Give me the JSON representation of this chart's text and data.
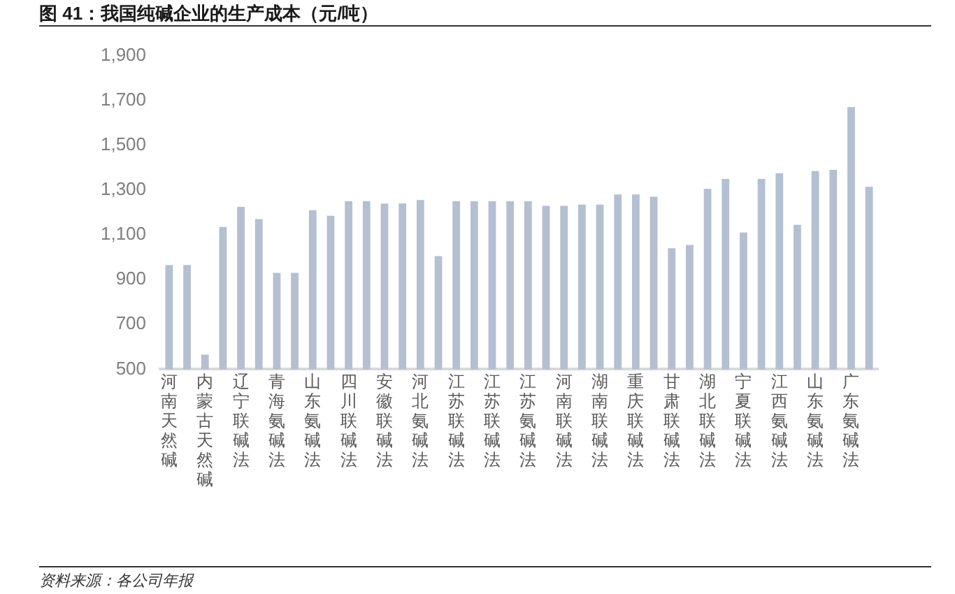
{
  "chart_data": {
    "type": "bar",
    "title": "图 41：我国纯碱企业的生产成本（元/吨）",
    "categories": [
      "河南天然碱",
      null,
      "内蒙古天然碱",
      null,
      "辽宁联碱法",
      null,
      "青海氨碱法",
      null,
      "山东氨碱法",
      null,
      "四川联碱法",
      null,
      "安徽联碱法",
      null,
      "河北氨碱法",
      null,
      "江苏联碱法",
      null,
      "江苏联碱法",
      null,
      "江苏氨碱法",
      null,
      "河南联碱法",
      null,
      "湖南联碱法",
      null,
      "重庆联碱法",
      null,
      "甘肃联碱法",
      null,
      "湖北联碱法",
      null,
      "宁夏联碱法",
      null,
      "江西氨碱法",
      null,
      "山东氨碱法",
      null,
      "广东氨碱法",
      null
    ],
    "values": [
      965,
      965,
      565,
      1135,
      1225,
      1170,
      930,
      930,
      1210,
      1185,
      1250,
      1250,
      1240,
      1240,
      1255,
      1005,
      1250,
      1250,
      1250,
      1250,
      1250,
      1230,
      1230,
      1235,
      1235,
      1280,
      1280,
      1270,
      1040,
      1055,
      1305,
      1350,
      1110,
      1350,
      1375,
      1145,
      1385,
      1390,
      1670,
      1315
    ],
    "color": "#b4bfd2",
    "ylim": [
      500,
      1900
    ],
    "yticks": [
      500,
      700,
      900,
      {
        "value": 1100,
        "label": "1,100"
      },
      {
        "value": 1300,
        "label": "1,300"
      },
      {
        "value": 1500,
        "label": "1,500"
      },
      {
        "value": 1700,
        "label": "1,700"
      },
      {
        "value": 1900,
        "label": "1,900"
      }
    ],
    "grid": false,
    "legend": false,
    "annotations": [
      "资料来源：各公司年报"
    ]
  }
}
